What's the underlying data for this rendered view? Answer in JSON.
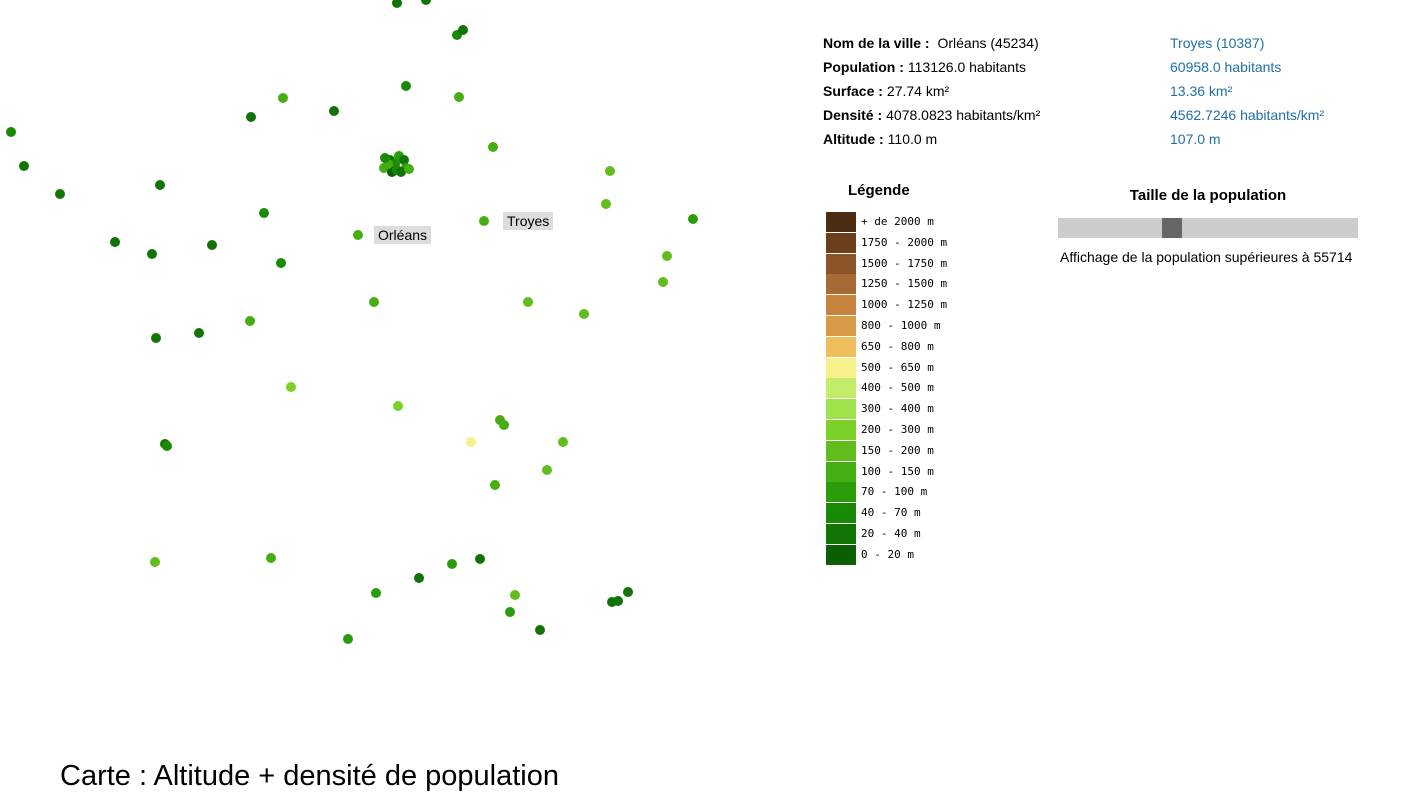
{
  "info": {
    "rows": [
      {
        "label": "Nom de la ville :",
        "value1": " Orléans (45234)",
        "value2": "Troyes (10387)"
      },
      {
        "label": "Population :",
        "value1": "113126.0 habitants",
        "value2": "60958.0 habitants"
      },
      {
        "label": "Surface :",
        "value1": "27.74 km²",
        "value2": "13.36 km²"
      },
      {
        "label": "Densité :",
        "value1": "4078.0823 habitants/km²",
        "value2": "4562.7246 habitants/km²"
      },
      {
        "label": "Altitude :",
        "value1": "110.0 m",
        "value2": "107.0 m"
      }
    ]
  },
  "legend": {
    "title": "Légende",
    "items": [
      {
        "label": "+ de 2000 m",
        "color": "#4a2c12"
      },
      {
        "label": "1750 - 2000 m",
        "color": "#6b3f1c"
      },
      {
        "label": "1500 - 1750 m",
        "color": "#8a5428"
      },
      {
        "label": "1250 - 1500 m",
        "color": "#a86a34"
      },
      {
        "label": "1000 - 1250 m",
        "color": "#c8843c"
      },
      {
        "label": "800 - 1000 m",
        "color": "#d99a48"
      },
      {
        "label": "650 - 800 m",
        "color": "#efbd5c"
      },
      {
        "label": "500 - 650 m",
        "color": "#f5ef8c"
      },
      {
        "label": "400 - 500 m",
        "color": "#c4ec68"
      },
      {
        "label": "300 - 400 m",
        "color": "#9fe24c"
      },
      {
        "label": "200 - 300 m",
        "color": "#7dcf2a"
      },
      {
        "label": "150 - 200 m",
        "color": "#60bd1c"
      },
      {
        "label": "100 - 150 m",
        "color": "#45ae12"
      },
      {
        "label": "70 - 100 m",
        "color": "#2a9c0a"
      },
      {
        "label": "40 - 70 m",
        "color": "#1a8a06"
      },
      {
        "label": "20 - 40 m",
        "color": "#117404"
      },
      {
        "label": "0 - 20 m",
        "color": "#0c5e02"
      }
    ]
  },
  "population": {
    "title": "Taille de la population",
    "caption": "Affichage de la population supérieures à 55714"
  },
  "map": {
    "labels": [
      "Orléans",
      "Troyes"
    ],
    "city_colors": [
      "#0c5e02",
      "#117404",
      "#1a8a06",
      "#2a9c0a",
      "#45ae12",
      "#60bd1c",
      "#7dcf2a",
      "#9fe24c",
      "#f5ef8c"
    ]
  },
  "footer": {
    "title": "Carte : Altitude + densité de population"
  }
}
